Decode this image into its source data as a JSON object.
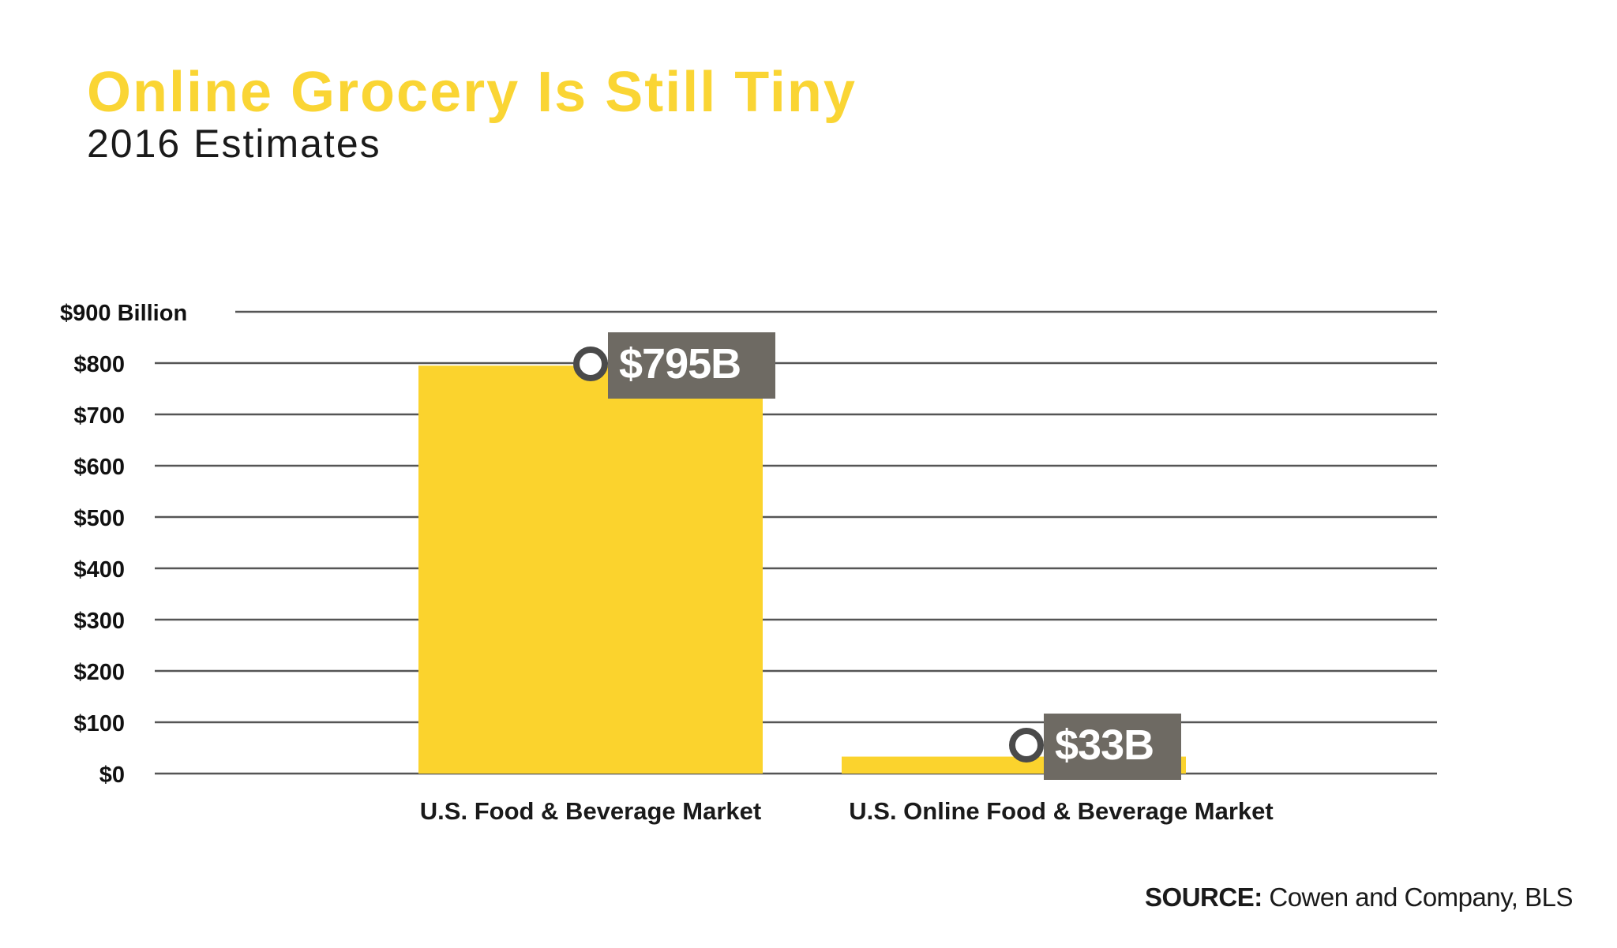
{
  "header": {
    "title": "Online Grocery Is Still Tiny",
    "subtitle": "2016 Estimates"
  },
  "source": {
    "label": "SOURCE:",
    "text": "Cowen and Company, BLS"
  },
  "colors": {
    "bar": "#fbd32d",
    "title": "#fad534",
    "label_bg": "#6e6a63",
    "grid": "#555555"
  },
  "chart_data": {
    "type": "bar",
    "title": "Online Grocery Is Still Tiny",
    "subtitle": "2016 Estimates",
    "categories": [
      "U.S. Food & Beverage Market",
      "U.S. Online Food & Beverage Market"
    ],
    "values": [
      795,
      33
    ],
    "data_labels": [
      "$795B",
      "$33B"
    ],
    "ylim": [
      0,
      900
    ],
    "yticks": [
      0,
      100,
      200,
      300,
      400,
      500,
      600,
      700,
      800,
      900
    ],
    "ytick_labels": [
      "$0",
      "$100",
      "$200",
      "$300",
      "$400",
      "$500",
      "$600",
      "$700",
      "$800",
      "$900 Billion"
    ],
    "xlabel": "",
    "ylabel": "",
    "grid": true
  }
}
